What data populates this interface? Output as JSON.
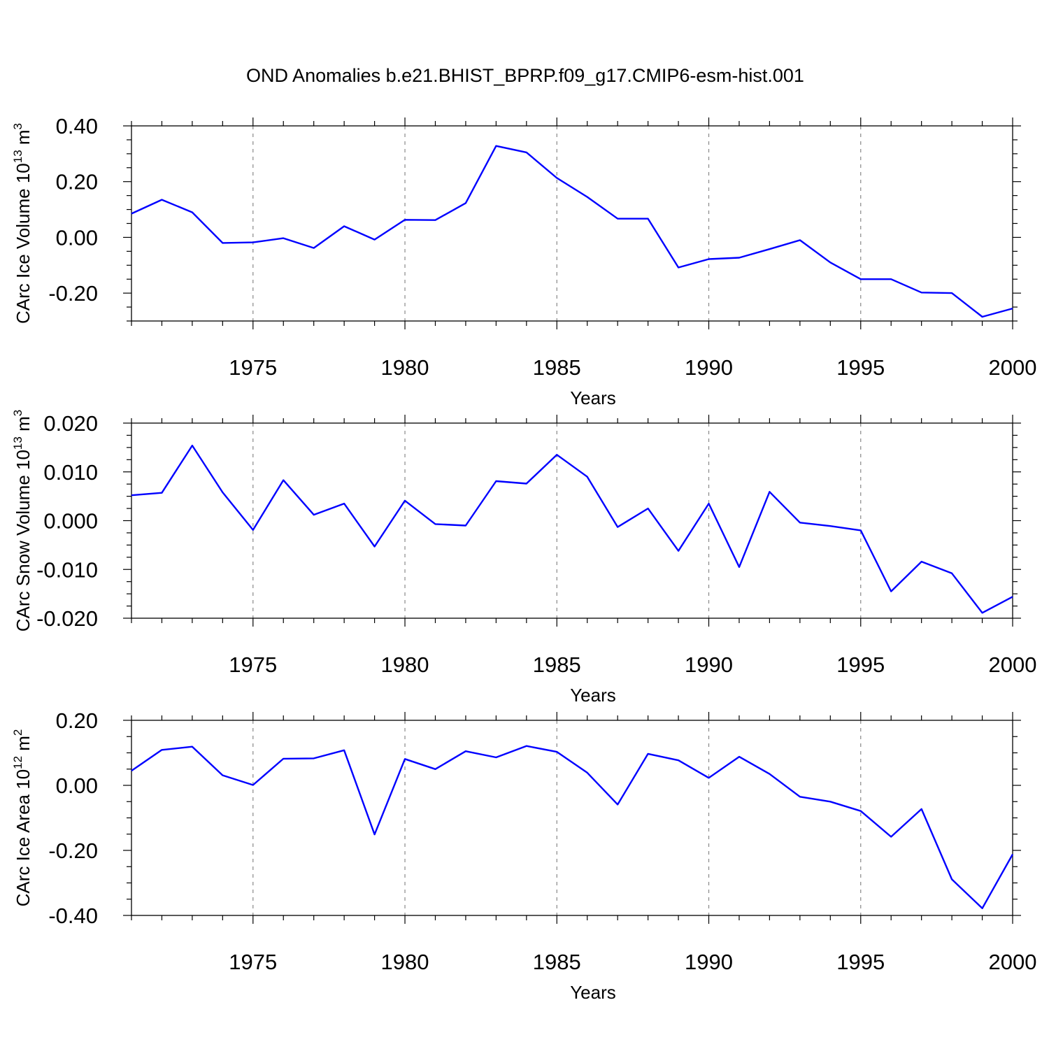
{
  "figure": {
    "title": "OND Anomalies b.e21.BHIST_BPRP.f09_g17.CMIP6-esm-hist.001"
  },
  "chart_data": [
    {
      "type": "line",
      "title": "",
      "xlabel": "Years",
      "ylabel_main": "CArc Ice Volume 10",
      "ylabel_exp": "13",
      "ylabel_unit": "m",
      "ylabel_unit_exp": "3",
      "xlim": [
        1971,
        2000
      ],
      "ylim": [
        -0.3,
        0.4
      ],
      "xticks": [
        1975,
        1980,
        1985,
        1990,
        1995,
        2000
      ],
      "xtick_labels": [
        "1975",
        "1980",
        "1985",
        "1990",
        "1995",
        "2000"
      ],
      "yticks": [
        0.4,
        0.2,
        0.0,
        -0.2
      ],
      "ytick_labels": [
        "0.40",
        "0.20",
        "0.00",
        "-0.20"
      ],
      "grid": "vertical dashed at major x ticks",
      "color": "#0000ff",
      "series": [
        {
          "x": [
            1971,
            1972,
            1973,
            1974,
            1975,
            1976,
            1977,
            1978,
            1979,
            1980,
            1981,
            1982,
            1983,
            1984,
            1985,
            1986,
            1987,
            1988,
            1989,
            1990,
            1991,
            1992,
            1993,
            1994,
            1995,
            1996,
            1997,
            1998,
            1999,
            2000
          ],
          "values": [
            0.085,
            0.135,
            0.09,
            -0.02,
            -0.018,
            -0.003,
            -0.038,
            0.04,
            -0.008,
            0.063,
            0.062,
            0.123,
            0.328,
            0.305,
            0.213,
            0.145,
            0.067,
            0.067,
            -0.108,
            -0.078,
            -0.073,
            -0.042,
            -0.01,
            -0.09,
            -0.15,
            -0.15,
            -0.198,
            -0.2,
            -0.285,
            -0.255
          ]
        }
      ]
    },
    {
      "type": "line",
      "title": "",
      "xlabel": "Years",
      "ylabel_main": "CArc Snow Volume 10",
      "ylabel_exp": "13",
      "ylabel_unit": "m",
      "ylabel_unit_exp": "3",
      "xlim": [
        1971,
        2000
      ],
      "ylim": [
        -0.02,
        0.02
      ],
      "xticks": [
        1975,
        1980,
        1985,
        1990,
        1995,
        2000
      ],
      "xtick_labels": [
        "1975",
        "1980",
        "1985",
        "1990",
        "1995",
        "2000"
      ],
      "yticks": [
        0.02,
        0.01,
        0.0,
        -0.01,
        -0.02
      ],
      "ytick_labels": [
        "0.020",
        "0.010",
        "0.000",
        "-0.010",
        "-0.020"
      ],
      "grid": "vertical dashed at major x ticks",
      "color": "#0000ff",
      "series": [
        {
          "x": [
            1971,
            1972,
            1973,
            1974,
            1975,
            1976,
            1977,
            1978,
            1979,
            1980,
            1981,
            1982,
            1983,
            1984,
            1985,
            1986,
            1987,
            1988,
            1989,
            1990,
            1991,
            1992,
            1993,
            1994,
            1995,
            1996,
            1997,
            1998,
            1999,
            2000
          ],
          "values": [
            0.0052,
            0.0057,
            0.0154,
            0.0058,
            -0.0019,
            0.0083,
            0.0012,
            0.0035,
            -0.0053,
            0.0041,
            -0.0007,
            -0.001,
            0.0081,
            0.0076,
            0.0135,
            0.009,
            -0.0013,
            0.0025,
            -0.0062,
            0.0035,
            -0.0095,
            0.0059,
            -0.0004,
            -0.0011,
            -0.002,
            -0.0145,
            -0.0084,
            -0.0108,
            -0.0189,
            -0.0156
          ]
        }
      ]
    },
    {
      "type": "line",
      "title": "",
      "xlabel": "Years",
      "ylabel_main": "CArc Ice Area 10",
      "ylabel_exp": "12",
      "ylabel_unit": "m",
      "ylabel_unit_exp": "2",
      "xlim": [
        1971,
        2000
      ],
      "ylim": [
        -0.4,
        0.2
      ],
      "xticks": [
        1975,
        1980,
        1985,
        1990,
        1995,
        2000
      ],
      "xtick_labels": [
        "1975",
        "1980",
        "1985",
        "1990",
        "1995",
        "2000"
      ],
      "yticks": [
        0.2,
        0.0,
        -0.2,
        -0.4
      ],
      "ytick_labels": [
        "0.20",
        "0.00",
        "-0.20",
        "-0.40"
      ],
      "grid": "vertical dashed at major x ticks",
      "color": "#0000ff",
      "series": [
        {
          "x": [
            1971,
            1972,
            1973,
            1974,
            1975,
            1976,
            1977,
            1978,
            1979,
            1980,
            1981,
            1982,
            1983,
            1984,
            1985,
            1986,
            1987,
            1988,
            1989,
            1990,
            1991,
            1992,
            1993,
            1994,
            1995,
            1996,
            1997,
            1998,
            1999,
            2000
          ],
          "values": [
            0.045,
            0.109,
            0.119,
            0.031,
            0.001,
            0.082,
            0.083,
            0.108,
            -0.151,
            0.081,
            0.05,
            0.105,
            0.086,
            0.121,
            0.103,
            0.039,
            -0.059,
            0.097,
            0.077,
            0.023,
            0.088,
            0.035,
            -0.035,
            -0.05,
            -0.079,
            -0.158,
            -0.073,
            -0.289,
            -0.378,
            -0.212
          ]
        }
      ]
    }
  ]
}
